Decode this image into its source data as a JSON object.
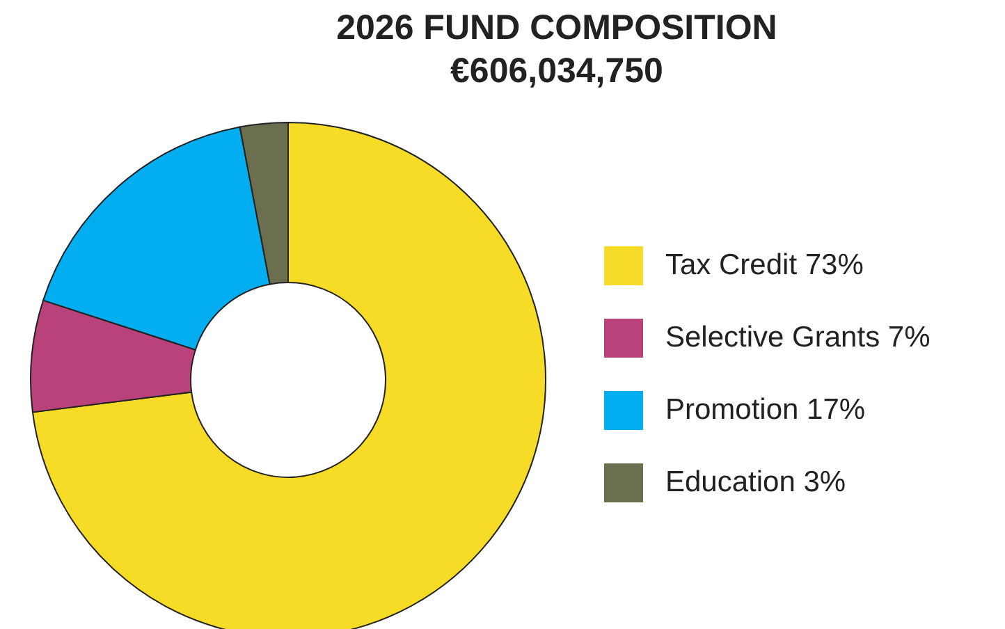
{
  "chart_data": {
    "type": "donut",
    "title": "2026 FUND COMPOSITION",
    "subtitle": "€606,034,750",
    "categories": [
      "Tax Credit",
      "Selective Grants",
      "Promotion",
      "Education"
    ],
    "values": [
      73,
      7,
      17,
      3
    ],
    "value_labels": [
      "73%",
      "7%",
      "17%",
      "3%"
    ],
    "colors": [
      "#f7dc27",
      "#b9427a",
      "#02aeef",
      "#6b6e4f"
    ],
    "legend": "right"
  }
}
